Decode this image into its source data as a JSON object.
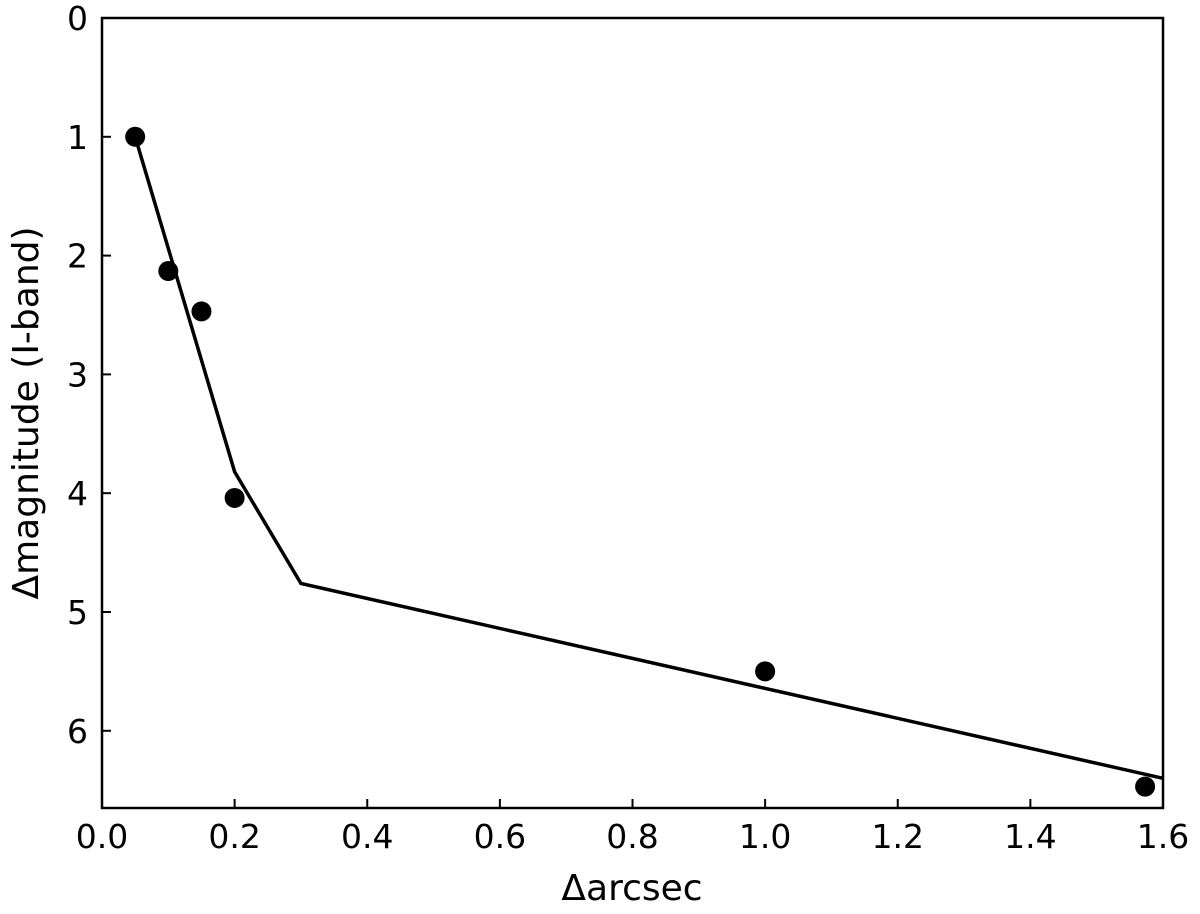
{
  "chart_data": {
    "type": "scatter",
    "xlabel": "Δarcsec",
    "ylabel": "Δmagnitude (I-band)",
    "xlim": [
      0,
      1.6
    ],
    "ylim": [
      0,
      6.65
    ],
    "y_inverted": true,
    "xticks": [
      {
        "value": 0,
        "label": "0.0"
      },
      {
        "value": 0.2,
        "label": "0.2"
      },
      {
        "value": 0.4,
        "label": "0.4"
      },
      {
        "value": 0.6,
        "label": "0.6"
      },
      {
        "value": 0.8,
        "label": "0.8"
      },
      {
        "value": 1.0,
        "label": "1.0"
      },
      {
        "value": 1.2,
        "label": "1.2"
      },
      {
        "value": 1.4,
        "label": "1.4"
      },
      {
        "value": 1.6,
        "label": "1.6"
      }
    ],
    "yticks": [
      0,
      1,
      2,
      3,
      4,
      5,
      6
    ],
    "grid": false,
    "series": [
      {
        "mode": "markers",
        "color": "#000000",
        "x": [
          0.05,
          0.1,
          0.15,
          0.2,
          1.0,
          1.573
        ],
        "values": [
          1.0,
          2.13,
          2.47,
          4.04,
          5.5,
          6.47
        ]
      },
      {
        "mode": "line",
        "color": "#000000",
        "x": [
          0.05,
          0.2,
          0.3,
          1.6
        ],
        "values": [
          1.0,
          3.82,
          4.76,
          6.4
        ]
      }
    ]
  }
}
